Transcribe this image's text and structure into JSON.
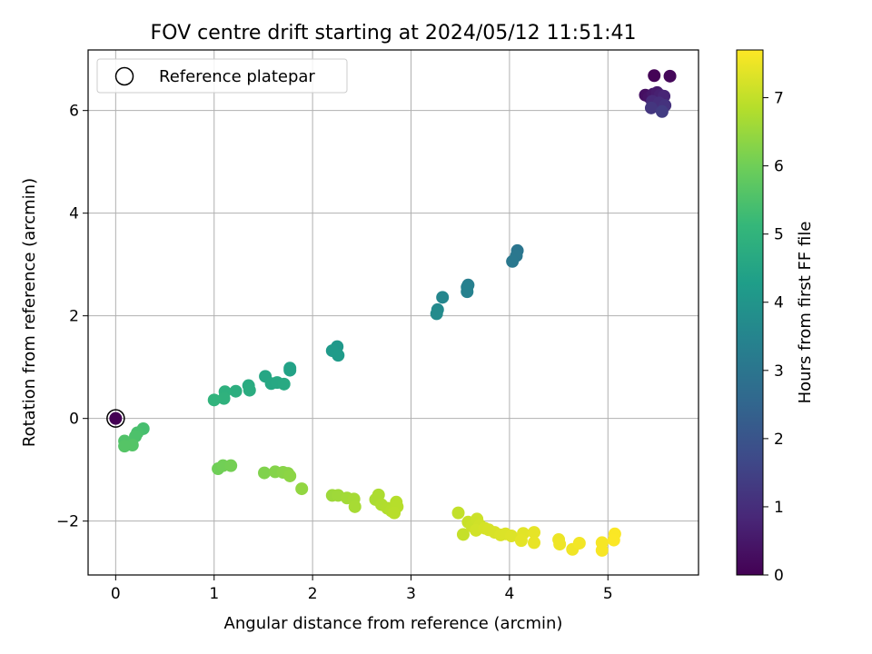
{
  "chart_data": {
    "type": "scatter",
    "title": "FOV centre drift starting at 2024/05/12 11:51:41",
    "xlabel": "Angular distance from reference (arcmin)",
    "ylabel": "Rotation from reference (arcmin)",
    "xlim": [
      -0.28,
      5.92
    ],
    "ylim": [
      -3.05,
      7.18
    ],
    "xticks": [
      "0",
      "1",
      "2",
      "3",
      "4",
      "5"
    ],
    "yticks": [
      "−2",
      "0",
      "2",
      "4",
      "6"
    ],
    "grid": true,
    "legend": {
      "location": "upper-left",
      "entries": [
        "Reference platepar"
      ]
    },
    "reference_point": {
      "x": 0,
      "y": 0
    },
    "colorbar": {
      "label": "Hours from first FF file",
      "range": [
        0,
        7.7
      ],
      "ticks": [
        "0",
        "1",
        "2",
        "3",
        "4",
        "5",
        "6",
        "7"
      ],
      "colormap": "viridis"
    },
    "points": [
      {
        "x": 5.47,
        "y": 6.68,
        "t": 0.05
      },
      {
        "x": 5.63,
        "y": 6.67,
        "t": 0.15
      },
      {
        "x": 5.38,
        "y": 6.3,
        "t": 0.3
      },
      {
        "x": 5.42,
        "y": 6.26,
        "t": 0.4
      },
      {
        "x": 5.46,
        "y": 6.32,
        "t": 0.5
      },
      {
        "x": 5.5,
        "y": 6.35,
        "t": 0.6
      },
      {
        "x": 5.53,
        "y": 6.3,
        "t": 0.7
      },
      {
        "x": 5.57,
        "y": 6.28,
        "t": 0.8
      },
      {
        "x": 5.45,
        "y": 6.18,
        "t": 0.9
      },
      {
        "x": 5.52,
        "y": 6.15,
        "t": 1.0
      },
      {
        "x": 5.58,
        "y": 6.1,
        "t": 1.1
      },
      {
        "x": 5.44,
        "y": 6.05,
        "t": 1.2
      },
      {
        "x": 5.55,
        "y": 5.98,
        "t": 1.35
      },
      {
        "x": 4.08,
        "y": 3.27,
        "t": 3.0
      },
      {
        "x": 4.07,
        "y": 3.17,
        "t": 3.05
      },
      {
        "x": 4.03,
        "y": 3.06,
        "t": 3.1
      },
      {
        "x": 3.58,
        "y": 2.6,
        "t": 3.3
      },
      {
        "x": 3.57,
        "y": 2.56,
        "t": 3.35
      },
      {
        "x": 3.57,
        "y": 2.47,
        "t": 3.4
      },
      {
        "x": 3.32,
        "y": 2.36,
        "t": 3.55
      },
      {
        "x": 3.27,
        "y": 2.12,
        "t": 3.65
      },
      {
        "x": 3.26,
        "y": 2.04,
        "t": 3.7
      },
      {
        "x": 2.25,
        "y": 1.4,
        "t": 4.1
      },
      {
        "x": 2.2,
        "y": 1.32,
        "t": 4.15
      },
      {
        "x": 2.26,
        "y": 1.23,
        "t": 4.2
      },
      {
        "x": 1.77,
        "y": 0.98,
        "t": 4.4
      },
      {
        "x": 1.77,
        "y": 0.94,
        "t": 4.42
      },
      {
        "x": 1.52,
        "y": 0.82,
        "t": 4.55
      },
      {
        "x": 1.58,
        "y": 0.68,
        "t": 4.6
      },
      {
        "x": 1.64,
        "y": 0.7,
        "t": 4.62
      },
      {
        "x": 1.71,
        "y": 0.67,
        "t": 4.65
      },
      {
        "x": 1.35,
        "y": 0.64,
        "t": 4.72
      },
      {
        "x": 1.36,
        "y": 0.55,
        "t": 4.75
      },
      {
        "x": 1.22,
        "y": 0.53,
        "t": 4.82
      },
      {
        "x": 1.11,
        "y": 0.52,
        "t": 4.88
      },
      {
        "x": 1.1,
        "y": 0.39,
        "t": 4.92
      },
      {
        "x": 1.0,
        "y": 0.36,
        "t": 4.98
      },
      {
        "x": 0.28,
        "y": -0.2,
        "t": 5.4
      },
      {
        "x": 0.22,
        "y": -0.28,
        "t": 5.45
      },
      {
        "x": 0.2,
        "y": -0.35,
        "t": 5.5
      },
      {
        "x": 0.09,
        "y": -0.44,
        "t": 5.55
      },
      {
        "x": 0.17,
        "y": -0.52,
        "t": 5.6
      },
      {
        "x": 0.09,
        "y": -0.54,
        "t": 5.62
      },
      {
        "x": 1.04,
        "y": -0.98,
        "t": 6.0
      },
      {
        "x": 1.09,
        "y": -0.92,
        "t": 6.03
      },
      {
        "x": 1.17,
        "y": -0.92,
        "t": 6.06
      },
      {
        "x": 1.51,
        "y": -1.06,
        "t": 6.2
      },
      {
        "x": 1.62,
        "y": -1.04,
        "t": 6.25
      },
      {
        "x": 1.7,
        "y": -1.05,
        "t": 6.3
      },
      {
        "x": 1.75,
        "y": -1.07,
        "t": 6.32
      },
      {
        "x": 1.77,
        "y": -1.12,
        "t": 6.35
      },
      {
        "x": 1.89,
        "y": -1.37,
        "t": 6.42
      },
      {
        "x": 2.2,
        "y": -1.5,
        "t": 6.55
      },
      {
        "x": 2.26,
        "y": -1.5,
        "t": 6.58
      },
      {
        "x": 2.35,
        "y": -1.55,
        "t": 6.62
      },
      {
        "x": 2.42,
        "y": -1.57,
        "t": 6.65
      },
      {
        "x": 2.43,
        "y": -1.72,
        "t": 6.67
      },
      {
        "x": 2.64,
        "y": -1.58,
        "t": 6.72
      },
      {
        "x": 2.67,
        "y": -1.49,
        "t": 6.74
      },
      {
        "x": 2.7,
        "y": -1.68,
        "t": 6.77
      },
      {
        "x": 2.76,
        "y": -1.75,
        "t": 6.8
      },
      {
        "x": 2.8,
        "y": -1.8,
        "t": 6.82
      },
      {
        "x": 2.85,
        "y": -1.63,
        "t": 6.84
      },
      {
        "x": 2.86,
        "y": -1.72,
        "t": 6.86
      },
      {
        "x": 2.83,
        "y": -1.84,
        "t": 6.88
      },
      {
        "x": 3.48,
        "y": -1.84,
        "t": 7.0
      },
      {
        "x": 3.53,
        "y": -2.26,
        "t": 7.03
      },
      {
        "x": 3.58,
        "y": -2.02,
        "t": 7.06
      },
      {
        "x": 3.62,
        "y": -2.1,
        "t": 7.09
      },
      {
        "x": 3.67,
        "y": -1.96,
        "t": 7.12
      },
      {
        "x": 3.7,
        "y": -2.08,
        "t": 7.15
      },
      {
        "x": 3.66,
        "y": -2.18,
        "t": 7.18
      },
      {
        "x": 3.75,
        "y": -2.14,
        "t": 7.21
      },
      {
        "x": 3.79,
        "y": -2.17,
        "t": 7.24
      },
      {
        "x": 3.85,
        "y": -2.22,
        "t": 7.26
      },
      {
        "x": 3.91,
        "y": -2.27,
        "t": 7.28
      },
      {
        "x": 3.96,
        "y": -2.25,
        "t": 7.3
      },
      {
        "x": 4.02,
        "y": -2.29,
        "t": 7.32
      },
      {
        "x": 4.14,
        "y": -2.24,
        "t": 7.38
      },
      {
        "x": 4.12,
        "y": -2.38,
        "t": 7.4
      },
      {
        "x": 4.25,
        "y": -2.22,
        "t": 7.43
      },
      {
        "x": 4.25,
        "y": -2.42,
        "t": 7.45
      },
      {
        "x": 4.5,
        "y": -2.36,
        "t": 7.5
      },
      {
        "x": 4.51,
        "y": -2.45,
        "t": 7.52
      },
      {
        "x": 4.64,
        "y": -2.55,
        "t": 7.55
      },
      {
        "x": 4.71,
        "y": -2.43,
        "t": 7.57
      },
      {
        "x": 4.94,
        "y": -2.42,
        "t": 7.62
      },
      {
        "x": 4.94,
        "y": -2.57,
        "t": 7.63
      },
      {
        "x": 5.07,
        "y": -2.25,
        "t": 7.66
      },
      {
        "x": 5.06,
        "y": -2.37,
        "t": 7.68
      }
    ]
  }
}
